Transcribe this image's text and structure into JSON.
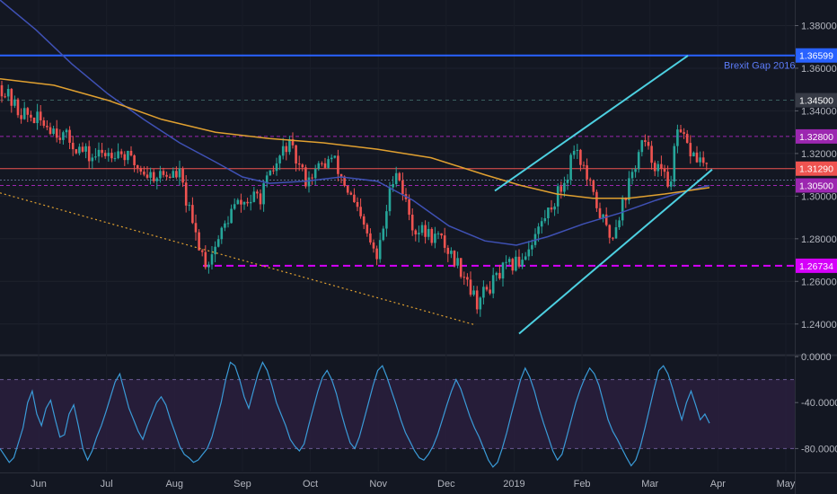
{
  "chart_data": [
    {
      "type": "candlestick",
      "title": "",
      "ylim": [
        1.226,
        1.392
      ],
      "y_ticks": [
        "1.38000",
        "1.36000",
        "1.34000",
        "1.32000",
        "1.30000",
        "1.28000",
        "1.26000",
        "1.24000"
      ],
      "time_labels": [
        "Jun",
        "Jul",
        "Aug",
        "Sep",
        "Oct",
        "Nov",
        "Dec",
        "2019",
        "Feb",
        "Mar",
        "Apr",
        "May"
      ],
      "price_tags": [
        {
          "label": "1.36599",
          "value": 1.36599,
          "bg": "#2962ff",
          "fg": "#ffffff"
        },
        {
          "label": "1.34500",
          "value": 1.345,
          "bg": "#363a45",
          "fg": "#ffffff"
        },
        {
          "label": "1.32800",
          "value": 1.328,
          "bg": "#9c27b0",
          "fg": "#ffffff"
        },
        {
          "label": "1.31290",
          "value": 1.3129,
          "bg": "#ef5350",
          "fg": "#ffffff"
        },
        {
          "label": "1.30500",
          "value": 1.305,
          "bg": "#9c27b0",
          "fg": "#ffffff"
        },
        {
          "label": "1.26734",
          "value": 1.26734,
          "bg": "#d500f9",
          "fg": "#ffffff"
        }
      ],
      "annotations": [
        {
          "text": "Brexit Gap 2016",
          "value": 1.36599
        }
      ],
      "moving_averages": [
        {
          "color": "#3f51b5",
          "points": [
            [
              0,
              1.392
            ],
            [
              40,
              1.378
            ],
            [
              80,
              1.362
            ],
            [
              120,
              1.348
            ],
            [
              160,
              1.336
            ],
            [
              200,
              1.325
            ],
            [
              240,
              1.316
            ],
            [
              270,
              1.309
            ],
            [
              300,
              1.306
            ],
            [
              340,
              1.307
            ],
            [
              380,
              1.309
            ],
            [
              420,
              1.307
            ],
            [
              460,
              1.298
            ],
            [
              500,
              1.286
            ],
            [
              540,
              1.279
            ],
            [
              575,
              1.277
            ],
            [
              610,
              1.281
            ],
            [
              650,
              1.287
            ],
            [
              690,
              1.292
            ],
            [
              730,
              1.298
            ],
            [
              760,
              1.302
            ],
            [
              790,
              1.305
            ]
          ]
        },
        {
          "color": "#e0a030",
          "points": [
            [
              0,
              1.355
            ],
            [
              60,
              1.352
            ],
            [
              120,
              1.345
            ],
            [
              180,
              1.336
            ],
            [
              240,
              1.33
            ],
            [
              300,
              1.327
            ],
            [
              360,
              1.325
            ],
            [
              420,
              1.322
            ],
            [
              480,
              1.318
            ],
            [
              540,
              1.31
            ],
            [
              580,
              1.305
            ],
            [
              620,
              1.301
            ],
            [
              660,
              1.299
            ],
            [
              700,
              1.299
            ],
            [
              740,
              1.301
            ],
            [
              790,
              1.304
            ]
          ]
        }
      ],
      "trend_lines": [
        {
          "color": "#4dd0e1",
          "from": [
            551,
            1.3025
          ],
          "to": [
            766,
            1.3659
          ]
        },
        {
          "color": "#4dd0e1",
          "from": [
            578,
            1.2355
          ],
          "to": [
            793,
            1.3125
          ]
        },
        {
          "color": "#e0a030",
          "dash": true,
          "from": [
            0,
            1.3015
          ],
          "to": [
            530,
            1.2395
          ]
        }
      ]
    },
    {
      "type": "line",
      "title": "",
      "ylim": [
        -100,
        0
      ],
      "y_ticks": [
        "0.0000",
        "-40.0000",
        "-80.0000"
      ],
      "band": [
        -20,
        -80
      ],
      "values": [
        -80,
        -86,
        -92,
        -88,
        -75,
        -62,
        -40,
        -30,
        -50,
        -60,
        -45,
        -38,
        -55,
        -70,
        -68,
        -50,
        -42,
        -60,
        -80,
        -90,
        -82,
        -70,
        -60,
        -48,
        -35,
        -22,
        -15,
        -30,
        -45,
        -55,
        -65,
        -72,
        -60,
        -50,
        -40,
        -35,
        -42,
        -55,
        -66,
        -78,
        -85,
        -88,
        -92,
        -90,
        -85,
        -80,
        -70,
        -55,
        -40,
        -20,
        -5,
        -8,
        -20,
        -35,
        -45,
        -30,
        -15,
        -5,
        -12,
        -25,
        -40,
        -50,
        -60,
        -72,
        -78,
        -82,
        -76,
        -60,
        -45,
        -30,
        -18,
        -12,
        -20,
        -32,
        -48,
        -62,
        -75,
        -80,
        -70,
        -55,
        -40,
        -25,
        -12,
        -8,
        -18,
        -30,
        -42,
        -55,
        -66,
        -74,
        -82,
        -88,
        -90,
        -85,
        -78,
        -68,
        -55,
        -42,
        -30,
        -20,
        -28,
        -40,
        -52,
        -62,
        -70,
        -80,
        -90,
        -96,
        -92,
        -80,
        -66,
        -50,
        -35,
        -20,
        -10,
        -18,
        -30,
        -45,
        -58,
        -70,
        -82,
        -90,
        -85,
        -70,
        -55,
        -40,
        -28,
        -18,
        -10,
        -15,
        -25,
        -40,
        -55,
        -65,
        -72,
        -80,
        -88,
        -95,
        -90,
        -78,
        -62,
        -45,
        -28,
        -12,
        -8,
        -15,
        -28,
        -42,
        -55,
        -40,
        -30,
        -42,
        -55,
        -50,
        -58
      ]
    }
  ]
}
